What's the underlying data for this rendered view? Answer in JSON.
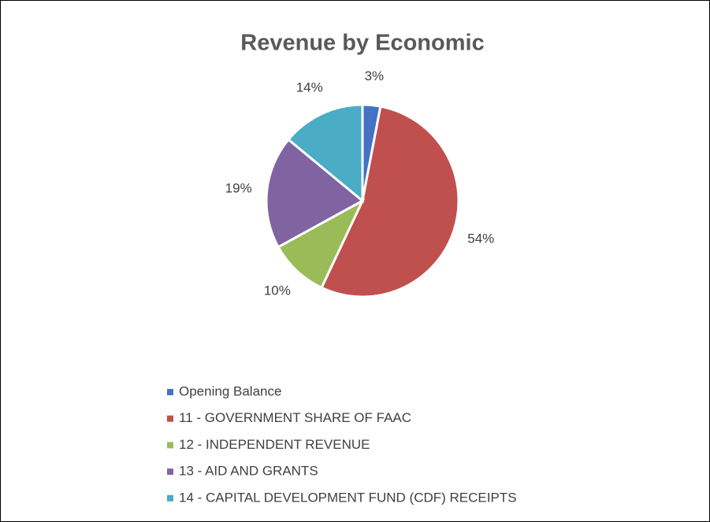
{
  "chart_data": {
    "type": "pie",
    "title": "Revenue by Economic",
    "categories": [
      "Opening Balance",
      "11 - GOVERNMENT SHARE OF FAAC",
      "12 - INDEPENDENT REVENUE",
      "13 - AID AND GRANTS",
      "14 - CAPITAL DEVELOPMENT FUND (CDF) RECEIPTS"
    ],
    "values": [
      3,
      54,
      10,
      19,
      14
    ],
    "value_labels": [
      "3%",
      "54%",
      "10%",
      "19%",
      "14%"
    ],
    "colors": [
      "#4472c4",
      "#c0504d",
      "#9bbb59",
      "#8064a2",
      "#4bacc6"
    ],
    "legend": "bottom"
  }
}
